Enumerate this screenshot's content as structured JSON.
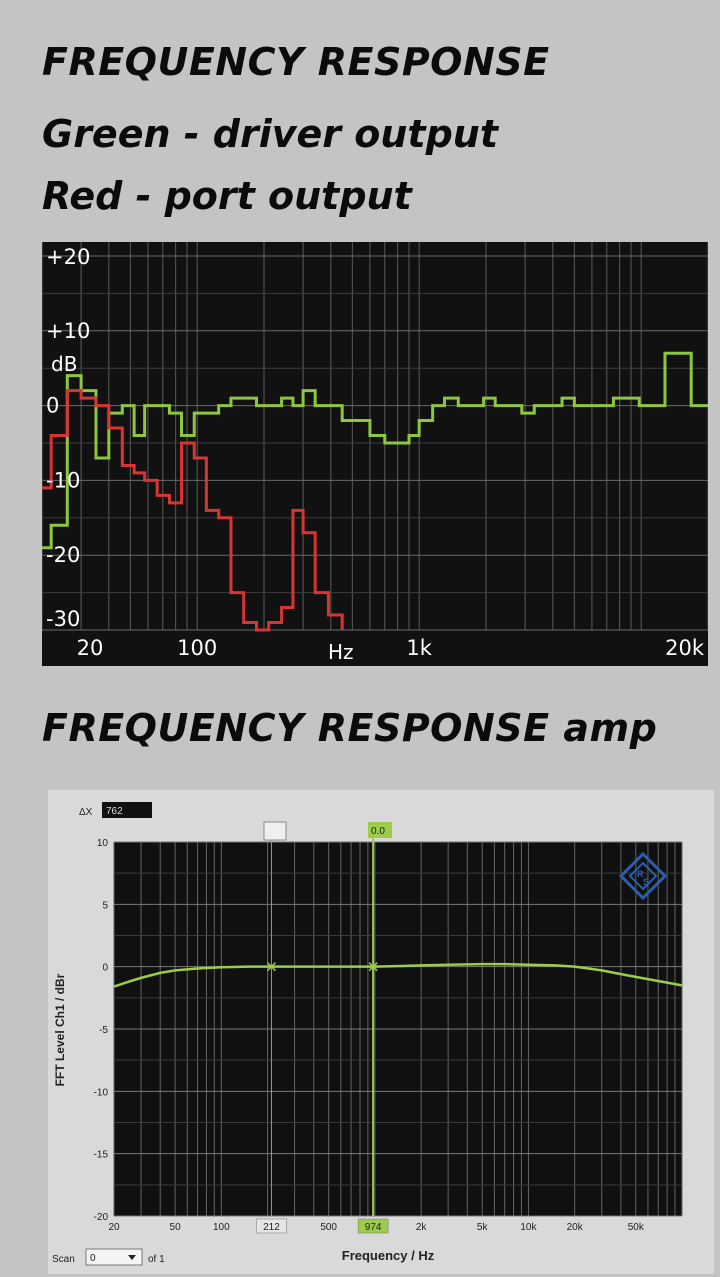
{
  "headings": {
    "title1": "FREQUENCY RESPONSE",
    "legend_green": "Green - driver output",
    "legend_red": "Red - port output",
    "title2": "FREQUENCY RESPONSE amp"
  },
  "colors": {
    "background": "#c4c4c4",
    "plot_bg": "#111111",
    "grid": "#5a5a5a",
    "green": "#8ec63f",
    "red": "#d93434",
    "amp_trace": "#9ccc4a",
    "amp_marker": "#9ccc4a",
    "amp_logo": "#2a5fb0"
  },
  "chart_data": [
    {
      "type": "line",
      "title": "FREQUENCY RESPONSE",
      "xlabel": "Hz",
      "ylabel": "dB",
      "x_scale": "log",
      "xlim": [
        20,
        20000
      ],
      "ylim": [
        -30,
        20
      ],
      "x_tick_labels": [
        {
          "v": 20,
          "t": "20"
        },
        {
          "v": 100,
          "t": "100"
        },
        {
          "v": 1000,
          "t": "1k"
        },
        {
          "v": 20000,
          "t": "20k"
        }
      ],
      "y_tick_labels": [
        {
          "v": 20,
          "t": "+20"
        },
        {
          "v": 10,
          "t": "+10"
        },
        {
          "v": 0,
          "t": "0"
        },
        {
          "v": -10,
          "t": "-10"
        },
        {
          "v": -20,
          "t": "-20"
        },
        {
          "v": -30,
          "t": "-30"
        }
      ],
      "grid": true,
      "series": [
        {
          "name": "driver output",
          "color": "#8ec63f",
          "x": [
            20,
            22,
            26,
            30,
            35,
            40,
            46,
            52,
            58,
            66,
            75,
            85,
            97,
            110,
            125,
            142,
            162,
            185,
            210,
            240,
            270,
            300,
            340,
            390,
            450,
            520,
            600,
            700,
            800,
            900,
            1000,
            1150,
            1300,
            1500,
            1700,
            1950,
            2200,
            2500,
            2900,
            3300,
            3800,
            4400,
            5000,
            5700,
            6500,
            7500,
            8600,
            9800,
            11200,
            12800,
            14700,
            16800,
            19200,
            22000
          ],
          "y": [
            -19,
            -16,
            4,
            2,
            -7,
            -1,
            0,
            -4,
            0,
            0,
            -1,
            -4,
            -1,
            -1,
            0,
            1,
            1,
            0,
            0,
            1,
            0,
            2,
            0,
            0,
            -2,
            -2,
            -4,
            -5,
            -5,
            -4,
            -2,
            0,
            1,
            0,
            0,
            1,
            0,
            0,
            -1,
            0,
            0,
            1,
            0,
            0,
            0,
            1,
            1,
            0,
            0,
            7,
            7,
            0,
            0,
            0
          ]
        },
        {
          "name": "port output",
          "color": "#d93434",
          "x": [
            20,
            22,
            26,
            30,
            35,
            40,
            46,
            52,
            58,
            66,
            75,
            85,
            97,
            110,
            125,
            142,
            162,
            185,
            210,
            240,
            270,
            300,
            340,
            390,
            450
          ],
          "y": [
            -11,
            -4,
            2,
            1,
            0,
            -3,
            -8,
            -9,
            -10,
            -12,
            -13,
            -5,
            -7,
            -14,
            -15,
            -25,
            -29,
            -30,
            -29,
            -27,
            -14,
            -17,
            -25,
            -28,
            -30
          ]
        }
      ]
    },
    {
      "type": "line",
      "title": "FREQUENCY RESPONSE amp",
      "xlabel": "Frequency / Hz",
      "ylabel": "FFT Level Ch1 / dBr",
      "x_scale": "log",
      "xlim": [
        20,
        100000
      ],
      "ylim": [
        -20,
        10
      ],
      "x_tick_labels": [
        {
          "v": 20,
          "t": "20"
        },
        {
          "v": 50,
          "t": "50"
        },
        {
          "v": 100,
          "t": "100"
        },
        {
          "v": 500,
          "t": "500"
        },
        {
          "v": 2000,
          "t": "2k"
        },
        {
          "v": 5000,
          "t": "5k"
        },
        {
          "v": 10000,
          "t": "10k"
        },
        {
          "v": 20000,
          "t": "20k"
        },
        {
          "v": 50000,
          "t": "50k"
        }
      ],
      "y_tick_labels": [
        {
          "v": 10,
          "t": "10"
        },
        {
          "v": 5,
          "t": "5"
        },
        {
          "v": 0,
          "t": "0"
        },
        {
          "v": -5,
          "t": "-5"
        },
        {
          "v": -10,
          "t": "-10"
        },
        {
          "v": -15,
          "t": "-15"
        },
        {
          "v": -20,
          "t": "-20"
        }
      ],
      "grid": true,
      "series": [
        {
          "name": "Ch1",
          "color": "#9ccc4a",
          "x": [
            20,
            25,
            30,
            40,
            50,
            70,
            100,
            150,
            212,
            300,
            500,
            974,
            1500,
            2000,
            3000,
            5000,
            7000,
            10000,
            15000,
            20000,
            30000,
            40000,
            60000,
            100000
          ],
          "y": [
            -1.6,
            -1.2,
            -0.9,
            -0.5,
            -0.3,
            -0.15,
            -0.05,
            0,
            0,
            0,
            0,
            0,
            0.05,
            0.1,
            0.15,
            0.2,
            0.2,
            0.15,
            0.1,
            0,
            -0.3,
            -0.6,
            -1.0,
            -1.5
          ]
        }
      ],
      "markers": [
        {
          "label": "212",
          "x": 212
        },
        {
          "label": "974",
          "x": 974,
          "color": "#9ccc4a"
        }
      ],
      "cursor_value": "0.0",
      "delta_label": "ΔX",
      "delta_value": "762",
      "scan_label": "Scan",
      "scan_value": "0",
      "scan_of": "of 1"
    }
  ]
}
